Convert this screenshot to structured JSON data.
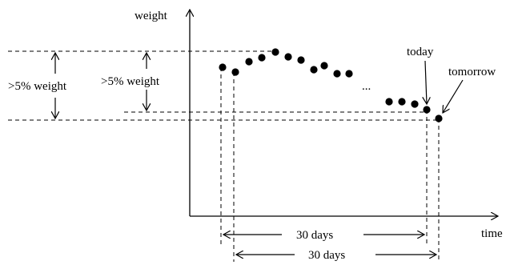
{
  "labels": {
    "y_axis": "weight",
    "x_axis": "time",
    "left_bracket": ">5% weight",
    "inner_bracket": ">5% weight",
    "today": "today",
    "tomorrow": "tomorrow",
    "ellipsis": "...",
    "window_today": "30 days",
    "window_tomorrow": "30 days"
  },
  "colors": {
    "ink": "#000000",
    "background": "#ffffff"
  },
  "markers": {
    "dot_count": 19,
    "today_marker": "arrow",
    "tomorrow_marker": "arrow"
  }
}
